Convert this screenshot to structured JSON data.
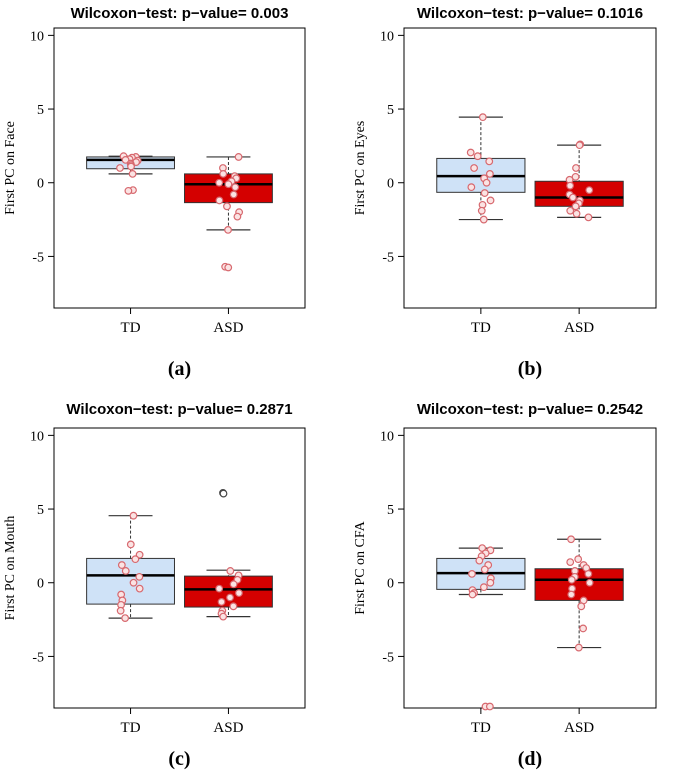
{
  "chart_data": [
    {
      "type": "box",
      "panel_label": "(a)",
      "title": "Wilcoxon−test: p−value= 0.003",
      "ylabel": "First PC on Face",
      "ylim": [
        -8.5,
        10.5
      ],
      "yticks": [
        10,
        5,
        0,
        -5
      ],
      "categories": [
        "TD",
        "ASD"
      ],
      "colors": [
        "#cfe2f7",
        "#d40000"
      ],
      "boxes": [
        {
          "whisker_low": 0.6,
          "q1": 0.95,
          "median": 1.55,
          "q3": 1.75,
          "whisker_high": 1.8
        },
        {
          "whisker_low": -3.2,
          "q1": -1.35,
          "median": -0.1,
          "q3": 0.6,
          "whisker_high": 1.75
        }
      ],
      "points": [
        [
          1.8,
          1.75,
          1.7,
          1.6,
          1.55,
          1.5,
          1.4,
          1.3,
          1.2,
          1.1,
          1.0,
          0.6,
          -0.5,
          -0.55
        ],
        [
          1.75,
          1.0,
          0.6,
          0.45,
          0.3,
          0.1,
          0.0,
          -0.1,
          -0.3,
          -0.8,
          -1.2,
          -1.6,
          -2.0,
          -2.3,
          -3.2,
          -5.7,
          -5.75
        ]
      ]
    },
    {
      "type": "box",
      "panel_label": "(b)",
      "title": "Wilcoxon−test: p−value= 0.1016",
      "ylabel": "First PC on Eyes",
      "ylim": [
        -8.5,
        10.5
      ],
      "yticks": [
        10,
        5,
        0,
        -5
      ],
      "categories": [
        "TD",
        "ASD"
      ],
      "colors": [
        "#cfe2f7",
        "#d40000"
      ],
      "boxes": [
        {
          "whisker_low": -2.5,
          "q1": -0.65,
          "median": 0.45,
          "q3": 1.65,
          "whisker_high": 4.45
        },
        {
          "whisker_low": -2.35,
          "q1": -1.6,
          "median": -1.0,
          "q3": 0.1,
          "whisker_high": 2.55
        }
      ],
      "points": [
        [
          4.45,
          2.05,
          1.8,
          1.45,
          1.0,
          0.6,
          0.3,
          0.0,
          -0.3,
          -0.7,
          -1.2,
          -1.5,
          -1.9,
          -2.5
        ],
        [
          2.6,
          2.55,
          1.0,
          0.4,
          0.2,
          -0.2,
          -0.5,
          -0.8,
          -1.0,
          -1.2,
          -1.4,
          -1.6,
          -1.9,
          -2.1,
          -2.35
        ]
      ]
    },
    {
      "type": "box",
      "panel_label": "(c)",
      "title": "Wilcoxon−test: p−value= 0.2871",
      "ylabel": "First PC on Mouth",
      "ylim": [
        -8.5,
        10.5
      ],
      "yticks": [
        10,
        5,
        0,
        -5
      ],
      "categories": [
        "TD",
        "ASD"
      ],
      "colors": [
        "#cfe2f7",
        "#d40000"
      ],
      "boxes": [
        {
          "whisker_low": -2.4,
          "q1": -1.45,
          "median": 0.5,
          "q3": 1.65,
          "whisker_high": 4.55
        },
        {
          "whisker_low": -2.3,
          "q1": -1.65,
          "median": -0.45,
          "q3": 0.45,
          "whisker_high": 0.85
        }
      ],
      "points": [
        [
          4.55,
          2.6,
          1.9,
          1.6,
          1.2,
          0.8,
          0.4,
          0.0,
          -0.4,
          -0.8,
          -1.2,
          -1.5,
          -1.9,
          -2.4
        ],
        [
          6.1,
          6.05,
          0.8,
          0.5,
          0.2,
          -0.1,
          -0.4,
          -0.7,
          -1.0,
          -1.3,
          -1.6,
          -1.9,
          -2.1,
          -2.3
        ]
      ]
    },
    {
      "type": "box",
      "panel_label": "(d)",
      "title": "Wilcoxon−test: p−value= 0.2542",
      "ylabel": "First PC on CFA",
      "ylim": [
        -8.5,
        10.5
      ],
      "yticks": [
        10,
        5,
        0,
        -5
      ],
      "categories": [
        "TD",
        "ASD"
      ],
      "colors": [
        "#cfe2f7",
        "#d40000"
      ],
      "boxes": [
        {
          "whisker_low": -0.8,
          "q1": -0.45,
          "median": 0.65,
          "q3": 1.65,
          "whisker_high": 2.35
        },
        {
          "whisker_low": -4.4,
          "q1": -1.2,
          "median": 0.2,
          "q3": 0.95,
          "whisker_high": 2.95
        }
      ],
      "points": [
        [
          2.35,
          2.2,
          2.0,
          1.8,
          1.5,
          1.2,
          0.9,
          0.6,
          0.3,
          0.0,
          -0.3,
          -0.5,
          -0.7,
          -0.8,
          -8.4,
          -8.4
        ],
        [
          2.95,
          1.6,
          1.4,
          1.2,
          1.0,
          0.8,
          0.6,
          0.4,
          0.2,
          0.0,
          -0.4,
          -0.8,
          -1.2,
          -1.6,
          -3.1,
          -4.4
        ]
      ]
    }
  ]
}
